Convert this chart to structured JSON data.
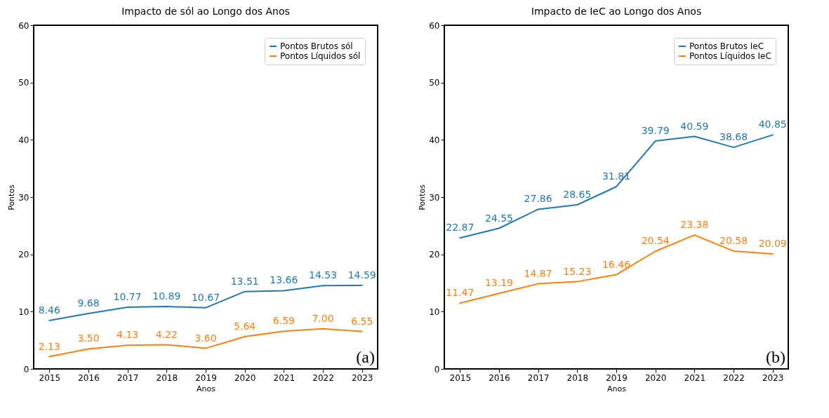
{
  "chart_data": [
    {
      "type": "line",
      "title": "Impacto de sól ao Longo dos Anos",
      "xlabel": "Anos",
      "ylabel": "Pontos",
      "x": [
        2015,
        2016,
        2017,
        2018,
        2019,
        2020,
        2021,
        2022,
        2023
      ],
      "series": [
        {
          "name": "Pontos Brutos sól",
          "color": "#1f77b4",
          "values": [
            8.46,
            9.68,
            10.77,
            10.89,
            10.67,
            13.51,
            13.66,
            14.53,
            14.59
          ],
          "value_labels": [
            "8.46",
            "9.68",
            "10.77",
            "10.89",
            "10.67",
            "13.51",
            "13.66",
            "14.53",
            "14.59"
          ]
        },
        {
          "name": "Pontos Líquidos sól",
          "color": "#ff7f0e",
          "values": [
            2.13,
            3.5,
            4.13,
            4.22,
            3.6,
            5.64,
            6.59,
            7.0,
            6.55
          ],
          "value_labels": [
            "2.13",
            "3.50",
            "4.13",
            "4.22",
            "3.60",
            "5.64",
            "6.59",
            "7.00",
            "6.55"
          ]
        }
      ],
      "xlim": [
        2014.6,
        2023.4
      ],
      "xticks": [
        2015,
        2016,
        2017,
        2018,
        2019,
        2020,
        2021,
        2022,
        2023
      ],
      "ylim": [
        0,
        60
      ],
      "yticks": [
        0,
        10,
        20,
        30,
        40,
        50,
        60
      ],
      "grid": false,
      "legend": "top right",
      "marker": "none",
      "line_style": "solid",
      "annotations": [
        "(a)"
      ]
    },
    {
      "type": "line",
      "title": "Impacto de IeC ao Longo dos Anos",
      "xlabel": "Anos",
      "ylabel": "Pontos",
      "x": [
        2015,
        2016,
        2017,
        2018,
        2019,
        2020,
        2021,
        2022,
        2023
      ],
      "series": [
        {
          "name": "Pontos Brutos IeC",
          "color": "#1f77b4",
          "values": [
            22.87,
            24.55,
            27.86,
            28.65,
            31.81,
            39.79,
            40.59,
            38.68,
            40.85
          ],
          "value_labels": [
            "22.87",
            "24.55",
            "27.86",
            "28.65",
            "31.81",
            "39.79",
            "40.59",
            "38.68",
            "40.85"
          ]
        },
        {
          "name": "Pontos Líquidos IeC",
          "color": "#ff7f0e",
          "values": [
            11.47,
            13.19,
            14.87,
            15.23,
            16.46,
            20.54,
            23.38,
            20.58,
            20.09
          ],
          "value_labels": [
            "11.47",
            "13.19",
            "14.87",
            "15.23",
            "16.46",
            "20.54",
            "23.38",
            "20.58",
            "20.09"
          ]
        }
      ],
      "xlim": [
        2014.6,
        2023.4
      ],
      "xticks": [
        2015,
        2016,
        2017,
        2018,
        2019,
        2020,
        2021,
        2022,
        2023
      ],
      "ylim": [
        0,
        60
      ],
      "yticks": [
        0,
        10,
        20,
        30,
        40,
        50,
        60
      ],
      "grid": false,
      "legend": "top right",
      "marker": "none",
      "line_style": "solid",
      "annotations": [
        "(b)"
      ]
    }
  ]
}
